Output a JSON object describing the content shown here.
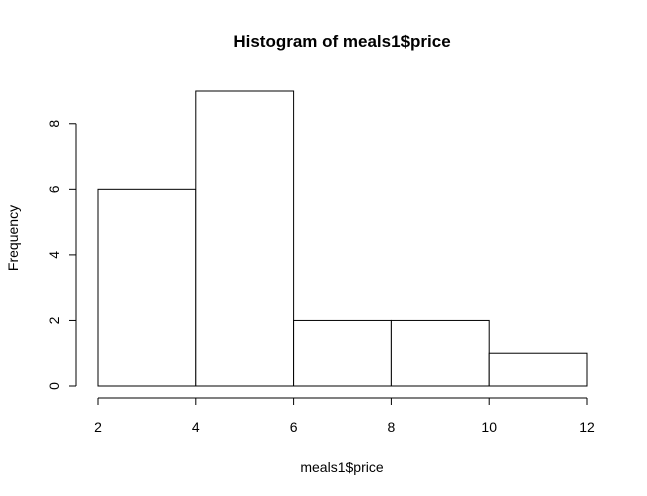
{
  "chart_data": {
    "type": "bar",
    "subtype": "histogram",
    "title": "Histogram of meals1$price",
    "xlabel": "meals1$price",
    "ylabel": "Frequency",
    "bins": [
      {
        "start": 2,
        "end": 4,
        "count": 6
      },
      {
        "start": 4,
        "end": 6,
        "count": 9
      },
      {
        "start": 6,
        "end": 8,
        "count": 2
      },
      {
        "start": 8,
        "end": 10,
        "count": 2
      },
      {
        "start": 10,
        "end": 12,
        "count": 1
      }
    ],
    "xlim": [
      2,
      12
    ],
    "ylim": [
      0,
      9
    ],
    "x_ticks": [
      "2",
      "4",
      "6",
      "8",
      "10",
      "12"
    ],
    "y_ticks": [
      "0",
      "2",
      "4",
      "6",
      "8"
    ],
    "grid": false,
    "bar_fill": "#ffffff",
    "bar_stroke": "#000000"
  }
}
